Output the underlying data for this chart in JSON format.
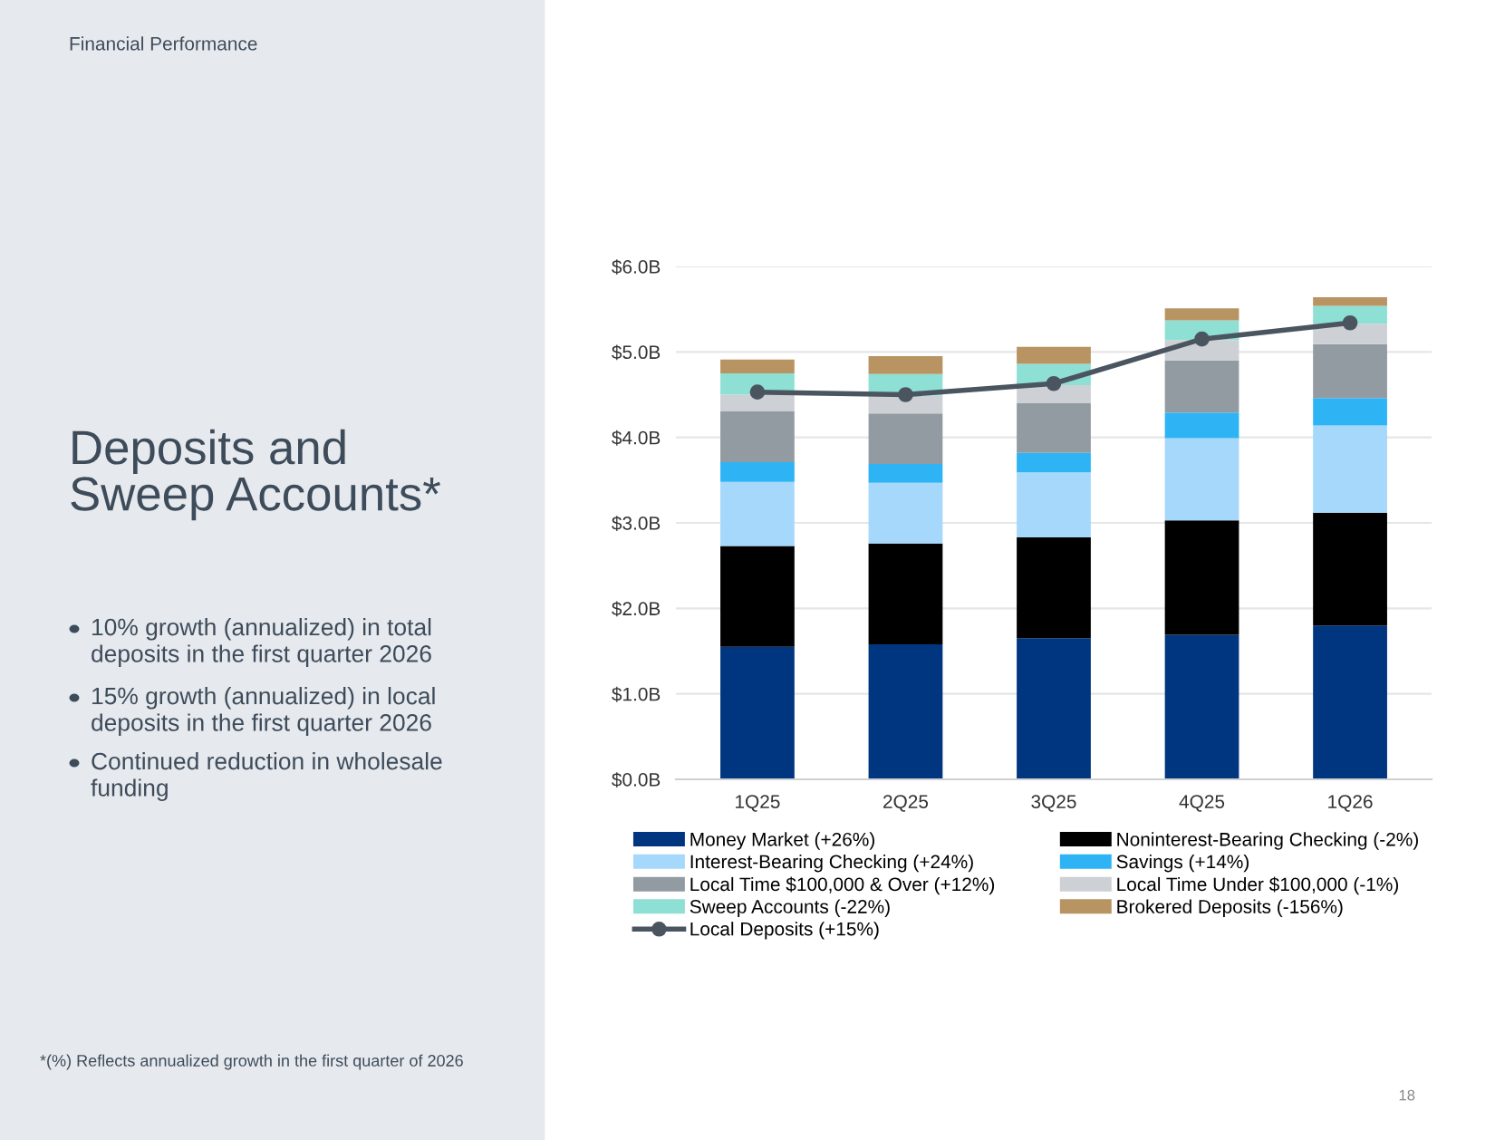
{
  "chart_data": {
    "type": "bar",
    "stacked": true,
    "title": "Deposits and\nSweep Accounts*",
    "subtitle": "Financial Performance",
    "annotations": [
      "10% growth (annualized) in total\ndeposits in the first quarter 2026",
      "15% growth (annualized) in local\ndeposits in the first quarter 2026",
      "Continued reduction in wholesale\nfunding",
      "*(%) Reflects annualized growth in the first quarter of 2026",
      "18"
    ],
    "categories": [
      "1Q25",
      "2Q25",
      "3Q25",
      "4Q25",
      "1Q26"
    ],
    "series": [
      {
        "name": "Money Market (+26%)",
        "color": "#003580",
        "values": [
          1.55,
          1.58,
          1.65,
          1.69,
          1.8
        ]
      },
      {
        "name": "Noninterest-Bearing Checking (-2%)",
        "color": "#000000",
        "values": [
          1.18,
          1.18,
          1.18,
          1.34,
          1.32
        ]
      },
      {
        "name": "Interest-Bearing Checking (+24%)",
        "color": "#a5d8fb",
        "values": [
          0.75,
          0.71,
          0.76,
          0.96,
          1.02
        ]
      },
      {
        "name": "Savings (+14%)",
        "color": "#2eb4f5",
        "values": [
          0.23,
          0.22,
          0.23,
          0.3,
          0.32
        ]
      },
      {
        "name": "Local Time $100,000 & Over (+12%)",
        "color": "#939ba2",
        "values": [
          0.6,
          0.59,
          0.58,
          0.61,
          0.63
        ]
      },
      {
        "name": "Local Time Under $100,000 (-1%)",
        "color": "#cdd0d4",
        "values": [
          0.19,
          0.21,
          0.21,
          0.24,
          0.24
        ]
      },
      {
        "name": "Sweep Accounts (-22%)",
        "color": "#8ee0d4",
        "values": [
          0.25,
          0.25,
          0.25,
          0.23,
          0.21
        ]
      },
      {
        "name": "Brokered Deposits (-156%)",
        "color": "#b89463",
        "values": [
          0.16,
          0.21,
          0.2,
          0.14,
          0.1
        ]
      },
      {
        "name": "Local Deposits (+15%)",
        "color": "#4a5560",
        "type": "line",
        "marker": "circle",
        "values": [
          4.53,
          4.5,
          4.63,
          5.15,
          5.34
        ]
      }
    ],
    "ylim": [
      0,
      6
    ],
    "yticks": [
      {
        "value": 0,
        "label": "$0.0B"
      },
      {
        "value": 1,
        "label": "$1.0B"
      },
      {
        "value": 2,
        "label": "$2.0B"
      },
      {
        "value": 3,
        "label": "$3.0B"
      },
      {
        "value": 4,
        "label": "$4.0B"
      },
      {
        "value": 5,
        "label": "$5.0B"
      },
      {
        "value": 6,
        "label": "$6.0B"
      }
    ],
    "grid": "y",
    "legend": "bottom"
  }
}
